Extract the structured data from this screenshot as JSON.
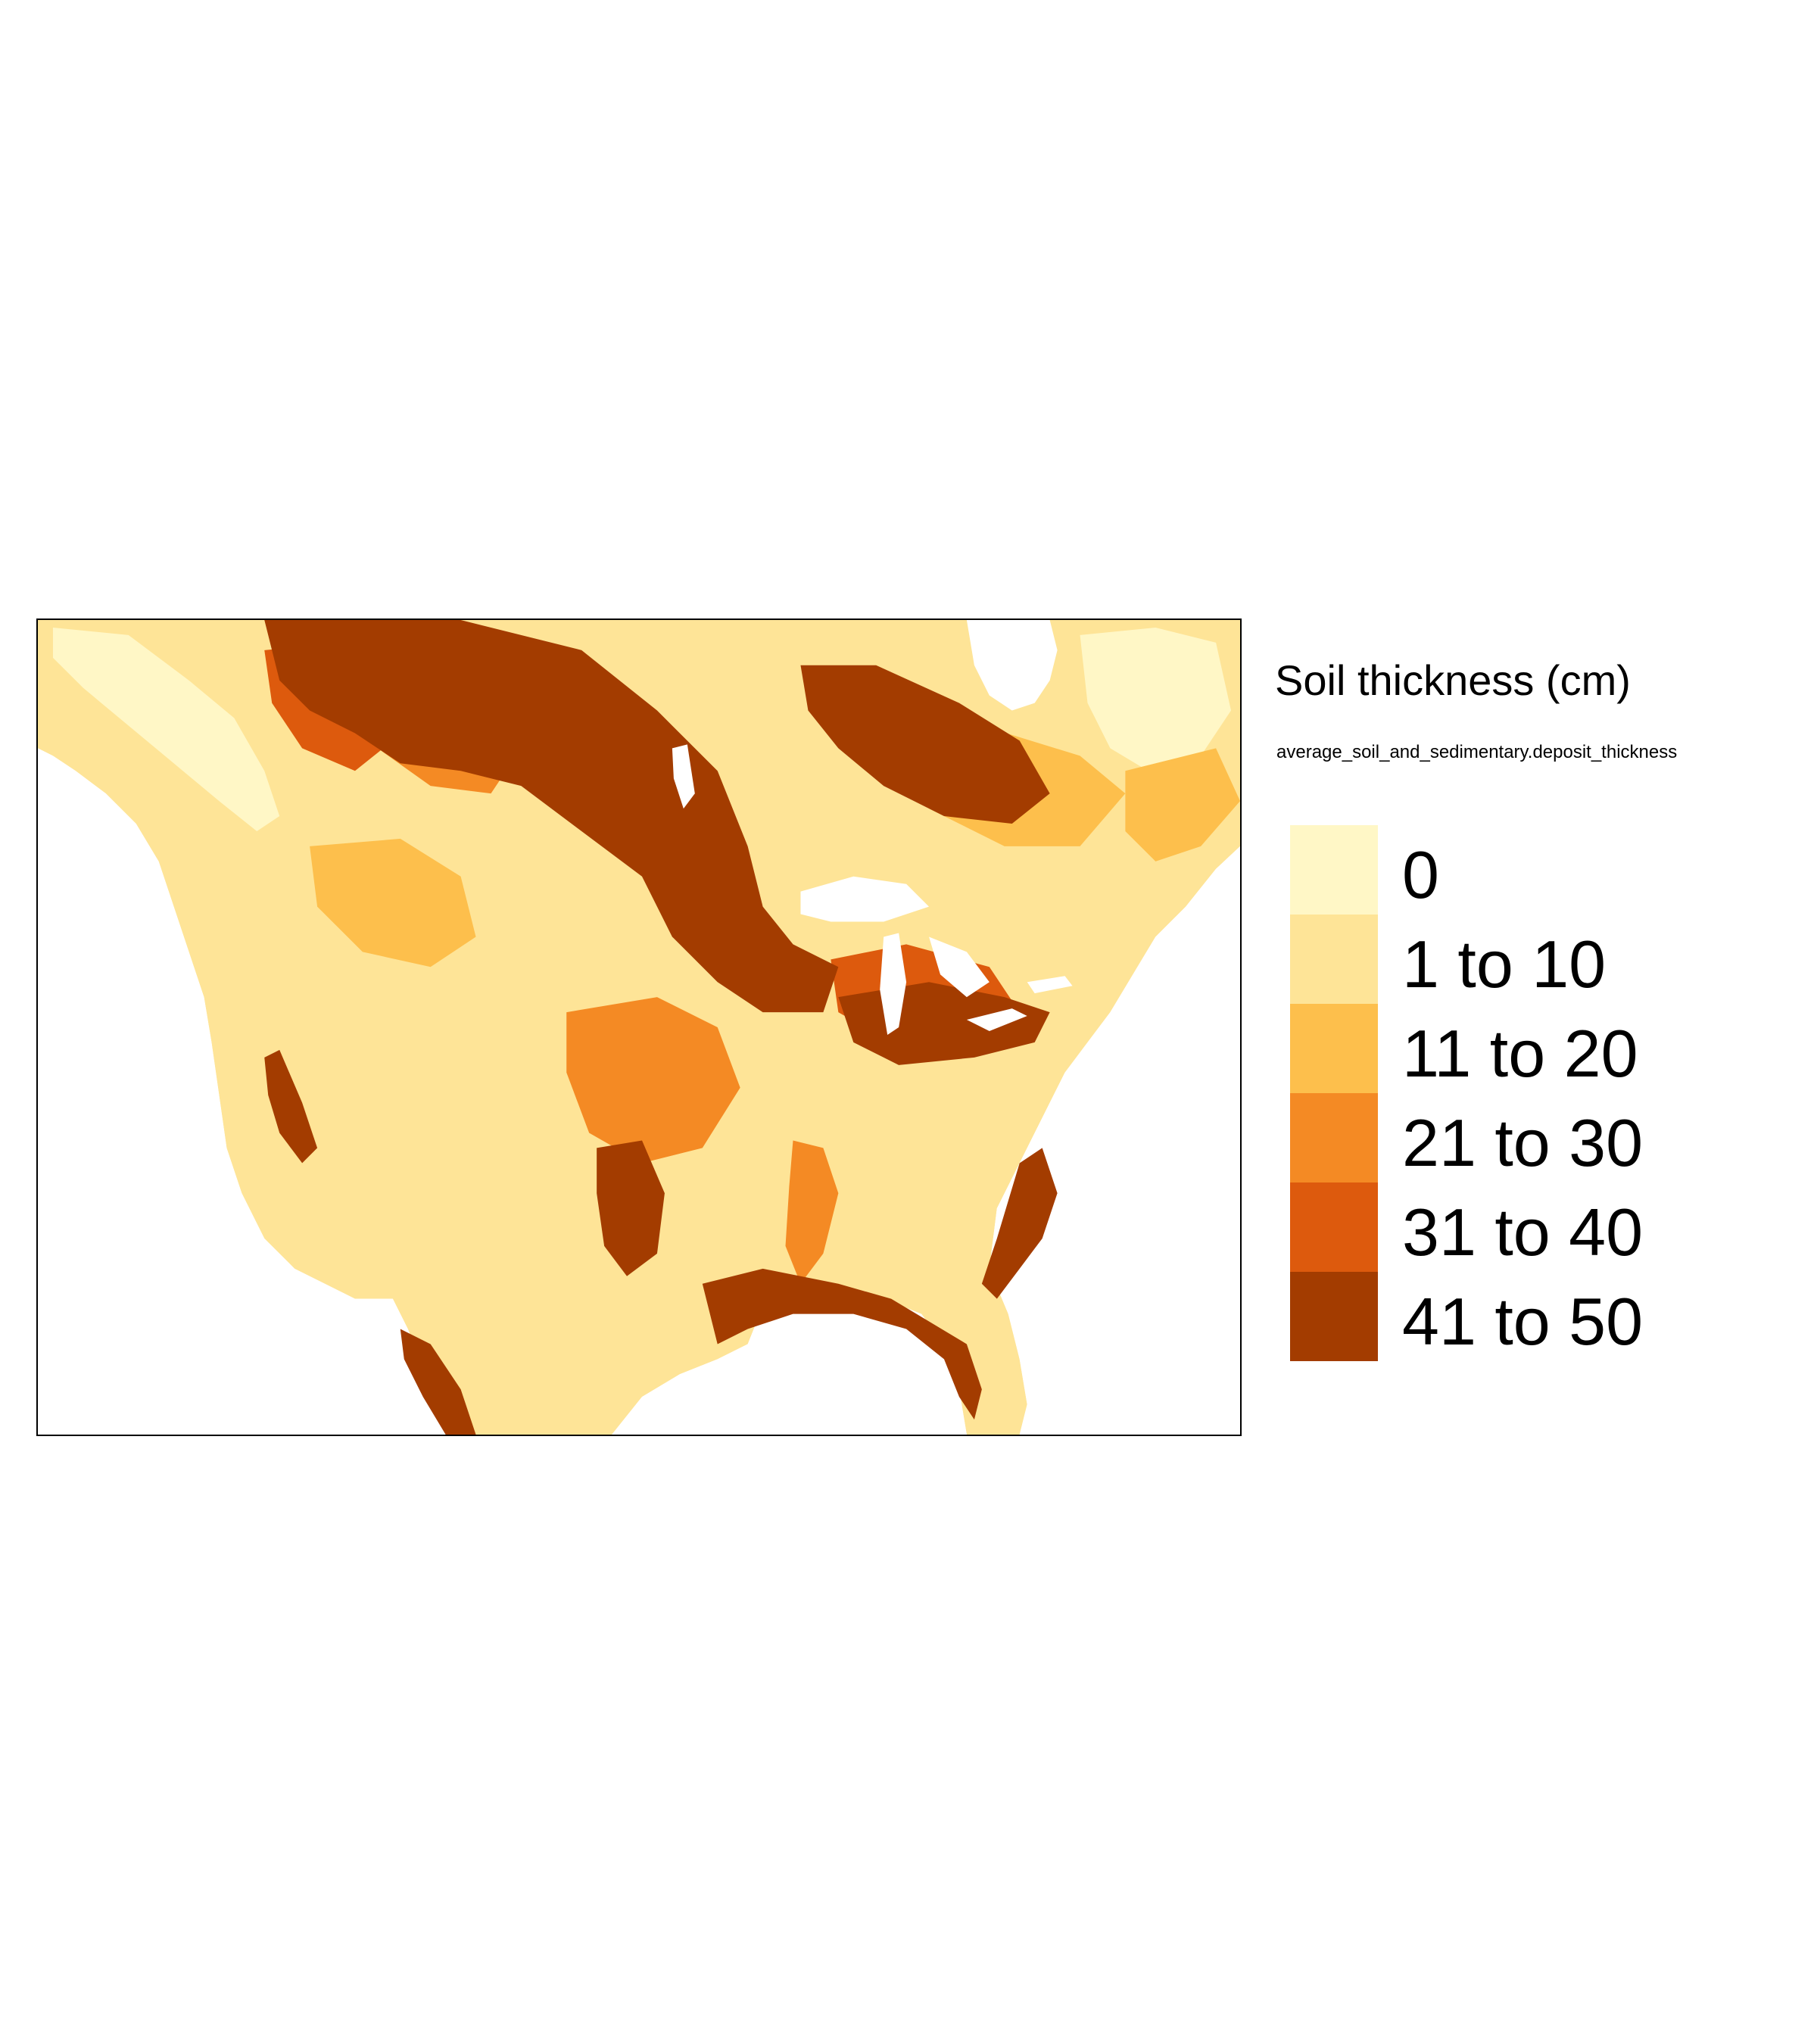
{
  "map": {
    "region": "North America",
    "classes": [
      {
        "label": "0",
        "color": "#FFF7C6"
      },
      {
        "label": "1 to 10",
        "color": "#FEE497"
      },
      {
        "label": "11 to 20",
        "color": "#FDBF4C"
      },
      {
        "label": "21 to 30",
        "color": "#F48A24"
      },
      {
        "label": "31 to 40",
        "color": "#DD5A0D"
      },
      {
        "label": "41 to 50",
        "color": "#A33C00"
      }
    ]
  },
  "legend": {
    "title": "Soil thickness (cm)",
    "subtitle": "average_soil_and_sedimentary.deposit_thickness"
  }
}
